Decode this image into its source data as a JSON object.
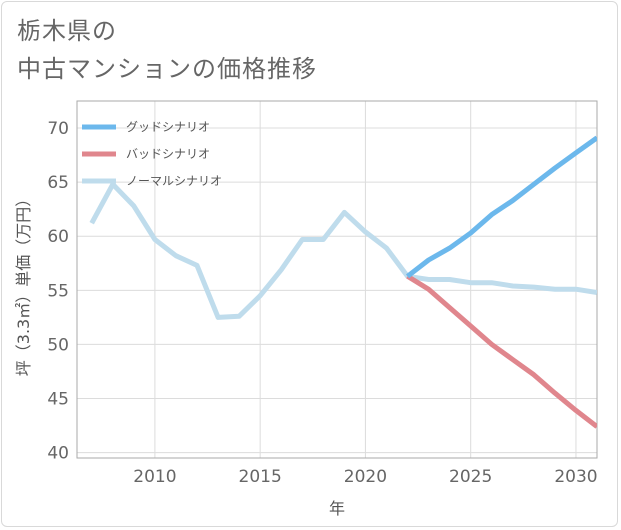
{
  "title_lines": [
    "栃木県の",
    "中古マンションの価格推移"
  ],
  "chart_data": {
    "type": "line",
    "title": "栃木県の中古マンションの価格推移",
    "xlabel": "年",
    "ylabel": "坪（3.3㎡）単価（万円）",
    "xlim": [
      2006.3,
      2031
    ],
    "ylim": [
      39.5,
      72.5
    ],
    "xticks": [
      2010,
      2015,
      2020,
      2025,
      2030
    ],
    "yticks": [
      40,
      45,
      50,
      55,
      60,
      65,
      70
    ],
    "grid": true,
    "legend_position": "top-left",
    "series": [
      {
        "name": "グッドシナリオ",
        "color": "#6cb8ec",
        "x": [
          2022,
          2023,
          2024,
          2025,
          2026,
          2027,
          2028,
          2029,
          2030,
          2031
        ],
        "y": [
          56.3,
          57.8,
          58.9,
          60.3,
          62.0,
          63.3,
          64.8,
          66.3,
          67.7,
          69.1
        ]
      },
      {
        "name": "バッドシナリオ",
        "color": "#e0868d",
        "x": [
          2022,
          2023,
          2024,
          2025,
          2026,
          2027,
          2028,
          2029,
          2030,
          2031
        ],
        "y": [
          56.3,
          55.1,
          53.4,
          51.7,
          50.0,
          48.6,
          47.2,
          45.5,
          43.9,
          42.4
        ]
      },
      {
        "name": "ノーマルシナリオ",
        "color": "#bfdcec",
        "x": [
          2007,
          2008,
          2009,
          2010,
          2011,
          2012,
          2013,
          2014,
          2015,
          2016,
          2017,
          2018,
          2019,
          2020,
          2021,
          2022,
          2023,
          2024,
          2025,
          2026,
          2027,
          2028,
          2029,
          2030,
          2031
        ],
        "y": [
          61.2,
          64.8,
          62.8,
          59.7,
          58.2,
          57.3,
          52.5,
          52.6,
          54.5,
          56.9,
          59.7,
          59.7,
          62.2,
          60.4,
          58.9,
          56.3,
          56.0,
          56.0,
          55.7,
          55.7,
          55.4,
          55.3,
          55.1,
          55.1,
          54.8
        ]
      }
    ]
  }
}
